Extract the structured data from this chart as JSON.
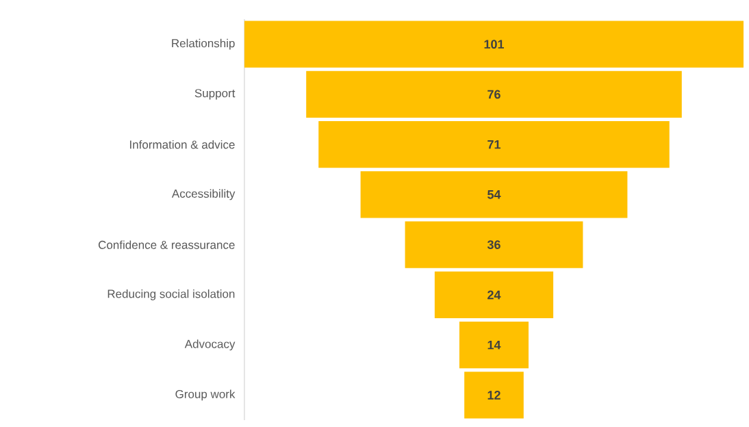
{
  "chart_data": {
    "type": "other",
    "categories": [
      "Relationship",
      "Support",
      "Information & advice",
      "Accessibility",
      "Confidence & reassurance",
      "Reducing social isolation",
      "Advocacy",
      "Group work"
    ],
    "values": [
      101,
      76,
      71,
      54,
      36,
      24,
      14,
      12
    ],
    "color": "#ffc000",
    "data_labels": true
  }
}
